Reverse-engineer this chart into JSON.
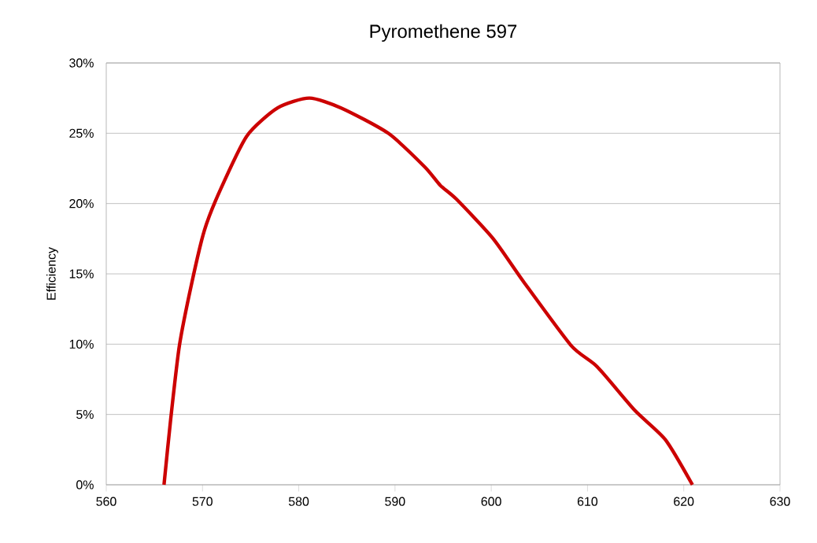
{
  "chart_data": {
    "type": "line",
    "title": "Pyromethene 597",
    "ylabel": "Efficiency",
    "x": [
      566.0,
      566.7,
      567.6,
      568.9,
      570.2,
      571.8,
      574.6,
      577.8,
      581.1,
      584.4,
      589.3,
      593.1,
      594.7,
      596.4,
      600.2,
      603.4,
      608.3,
      611.0,
      614.9,
      618.1,
      620.9
    ],
    "series": [
      {
        "color": "#cc0000",
        "values": [
          0,
          4.7,
          9.9,
          14.4,
          18.1,
          20.9,
          24.8,
          26.8,
          27.5,
          26.8,
          25.0,
          22.6,
          21.3,
          20.3,
          17.5,
          14.4,
          9.9,
          8.4,
          5.3,
          3.2,
          0
        ]
      }
    ],
    "xlim": [
      560,
      630
    ],
    "xticks": [
      560,
      570,
      580,
      590,
      600,
      610,
      620,
      630
    ],
    "ylim": [
      0,
      30
    ],
    "yticks": [
      {
        "value": 0,
        "label": "0%"
      },
      {
        "value": 5,
        "label": "5%"
      },
      {
        "value": 10,
        "label": "10%"
      },
      {
        "value": 15,
        "label": "15%"
      },
      {
        "value": 20,
        "label": "20%"
      },
      {
        "value": 25,
        "label": "25%"
      },
      {
        "value": 30,
        "label": "30%"
      }
    ],
    "grid": "y",
    "marker": "none",
    "line_style": "solid"
  }
}
